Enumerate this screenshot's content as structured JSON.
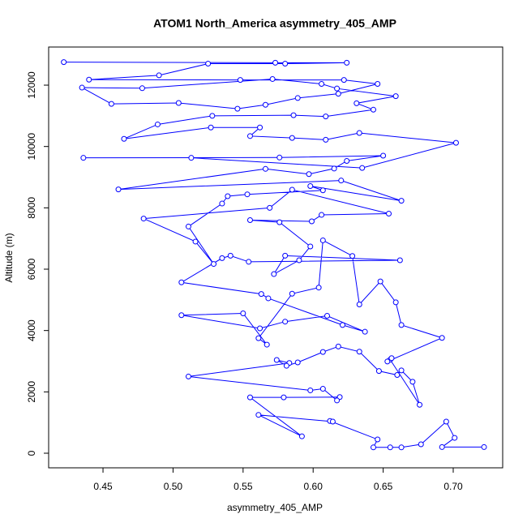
{
  "chart_data": {
    "type": "line",
    "title": "ATOM1 North_America asymmetry_405_AMP",
    "x_label": "asymmetry_405_AMP",
    "y_label": "Altitude (m)",
    "color": "blue",
    "markers": true,
    "xlim": [
      0.4112,
      0.7353
    ],
    "ylim": [
      -476,
      13243
    ],
    "xticks": [
      0.45,
      {
        "value": 0.5,
        "label": "0.50"
      },
      0.55,
      {
        "value": 0.6,
        "label": "0.60"
      },
      0.65,
      {
        "value": 0.7,
        "label": "0.70"
      }
    ],
    "yticks": [
      0,
      2000,
      4000,
      6000,
      8000,
      10000,
      12000
    ],
    "x": [
      0.722,
      0.692,
      0.701,
      0.695,
      0.677,
      0.663,
      0.655,
      0.643,
      0.646,
      0.612,
      0.614,
      0.561,
      0.592,
      0.555,
      0.579,
      0.619,
      0.617,
      0.607,
      0.598,
      0.511,
      0.583,
      0.574,
      0.581,
      0.589,
      0.607,
      0.618,
      0.633,
      0.647,
      0.66,
      0.663,
      0.671,
      0.676,
      0.655,
      0.656,
      0.653,
      0.692,
      0.663,
      0.659,
      0.648,
      0.633,
      0.628,
      0.607,
      0.604,
      0.585,
      0.561,
      0.567,
      0.55,
      0.506,
      0.562,
      0.58,
      0.61,
      0.637,
      0.621,
      0.568,
      0.563,
      0.506,
      0.535,
      0.541,
      0.554,
      0.662,
      0.58,
      0.572,
      0.59,
      0.598,
      0.576,
      0.555,
      0.599,
      0.606,
      0.654,
      0.585,
      0.569,
      0.479,
      0.516,
      0.529,
      0.511,
      0.535,
      0.539,
      0.553,
      0.607,
      0.598,
      0.663,
      0.62,
      0.461,
      0.566,
      0.597,
      0.615,
      0.624,
      0.65,
      0.576,
      0.436,
      0.513,
      0.635,
      0.702,
      0.633,
      0.609,
      0.585,
      0.555,
      0.562,
      0.527,
      0.465,
      0.489,
      0.528,
      0.586,
      0.609,
      0.643,
      0.631,
      0.659,
      0.617,
      0.606,
      0.571,
      0.478,
      0.435,
      0.456,
      0.504,
      0.546,
      0.566,
      0.589,
      0.618,
      0.646,
      0.622,
      0.548,
      0.44,
      0.49,
      0.525,
      0.58,
      0.624,
      0.573,
      0.422
    ],
    "values": [
      200,
      200,
      500,
      1030,
      290,
      190,
      190,
      190,
      450,
      1050,
      1030,
      1250,
      550,
      1820,
      1820,
      1830,
      1720,
      2100,
      2050,
      2500,
      2940,
      3040,
      2850,
      2960,
      3300,
      3480,
      3310,
      2680,
      2550,
      2700,
      2330,
      1580,
      3050,
      3100,
      2990,
      3760,
      4180,
      4920,
      5600,
      4850,
      6430,
      6940,
      5400,
      5200,
      3750,
      3540,
      4560,
      4500,
      4070,
      4290,
      4480,
      3960,
      4180,
      5050,
      5190,
      5570,
      6360,
      6440,
      6240,
      6290,
      6440,
      5840,
      6290,
      6740,
      7530,
      7600,
      7560,
      7770,
      7810,
      8590,
      8000,
      7650,
      6900,
      6170,
      7390,
      8140,
      8380,
      8440,
      8570,
      8710,
      8230,
      8890,
      8600,
      9270,
      9100,
      9280,
      9530,
      9700,
      9640,
      9630,
      9630,
      9300,
      10120,
      10440,
      10220,
      10280,
      10340,
      10620,
      10620,
      10250,
      10720,
      11000,
      11020,
      10980,
      11200,
      11410,
      11640,
      11890,
      12040,
      12200,
      11900,
      11920,
      11390,
      11420,
      11230,
      11360,
      11580,
      11720,
      12040,
      12170,
      12170,
      12180,
      12320,
      12700,
      12700,
      12730,
      12730,
      12750
    ]
  }
}
